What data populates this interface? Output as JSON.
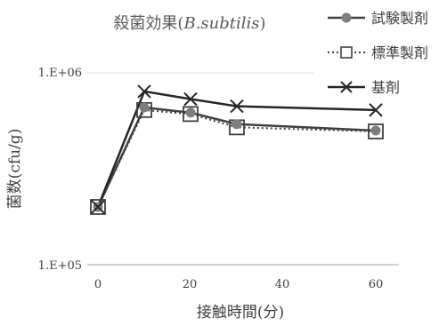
{
  "chart_data": {
    "type": "line",
    "title": "殺菌効果(B.subtilis)",
    "title_prefix": "殺菌効果(",
    "title_italic": "B.subtilis",
    "title_suffix": ")",
    "xlabel": "接触時間(分)",
    "ylabel": "菌数(cfu/g)",
    "x": [
      0,
      10,
      20,
      30,
      60
    ],
    "x_tick_labels": [
      "0",
      "20",
      "40",
      "60"
    ],
    "x_ticks": [
      0,
      20,
      40,
      60
    ],
    "xlim": [
      0,
      63
    ],
    "y_scale": "log",
    "y_tick_labels": [
      "1.E+05",
      "1.E+06"
    ],
    "y_ticks": [
      100000,
      1000000
    ],
    "ylim": [
      100000,
      1000000
    ],
    "grid": "horizontal major",
    "legend_position": "top-right",
    "series": [
      {
        "name": "試験製剤",
        "marker": "circle",
        "line": "solid",
        "color": "#404040",
        "marker_color": "#7f7f7f",
        "values": [
          200000,
          660000,
          620000,
          540000,
          500000
        ]
      },
      {
        "name": "標準製剤",
        "marker": "square",
        "line": "dotted",
        "color": "#404040",
        "marker_color": "#404040",
        "values": [
          200000,
          640000,
          610000,
          520000,
          495000
        ]
      },
      {
        "name": "基剤",
        "marker": "x",
        "line": "solid",
        "color": "#262626",
        "marker_color": "#262626",
        "values": [
          200000,
          800000,
          730000,
          670000,
          640000
        ]
      }
    ]
  }
}
